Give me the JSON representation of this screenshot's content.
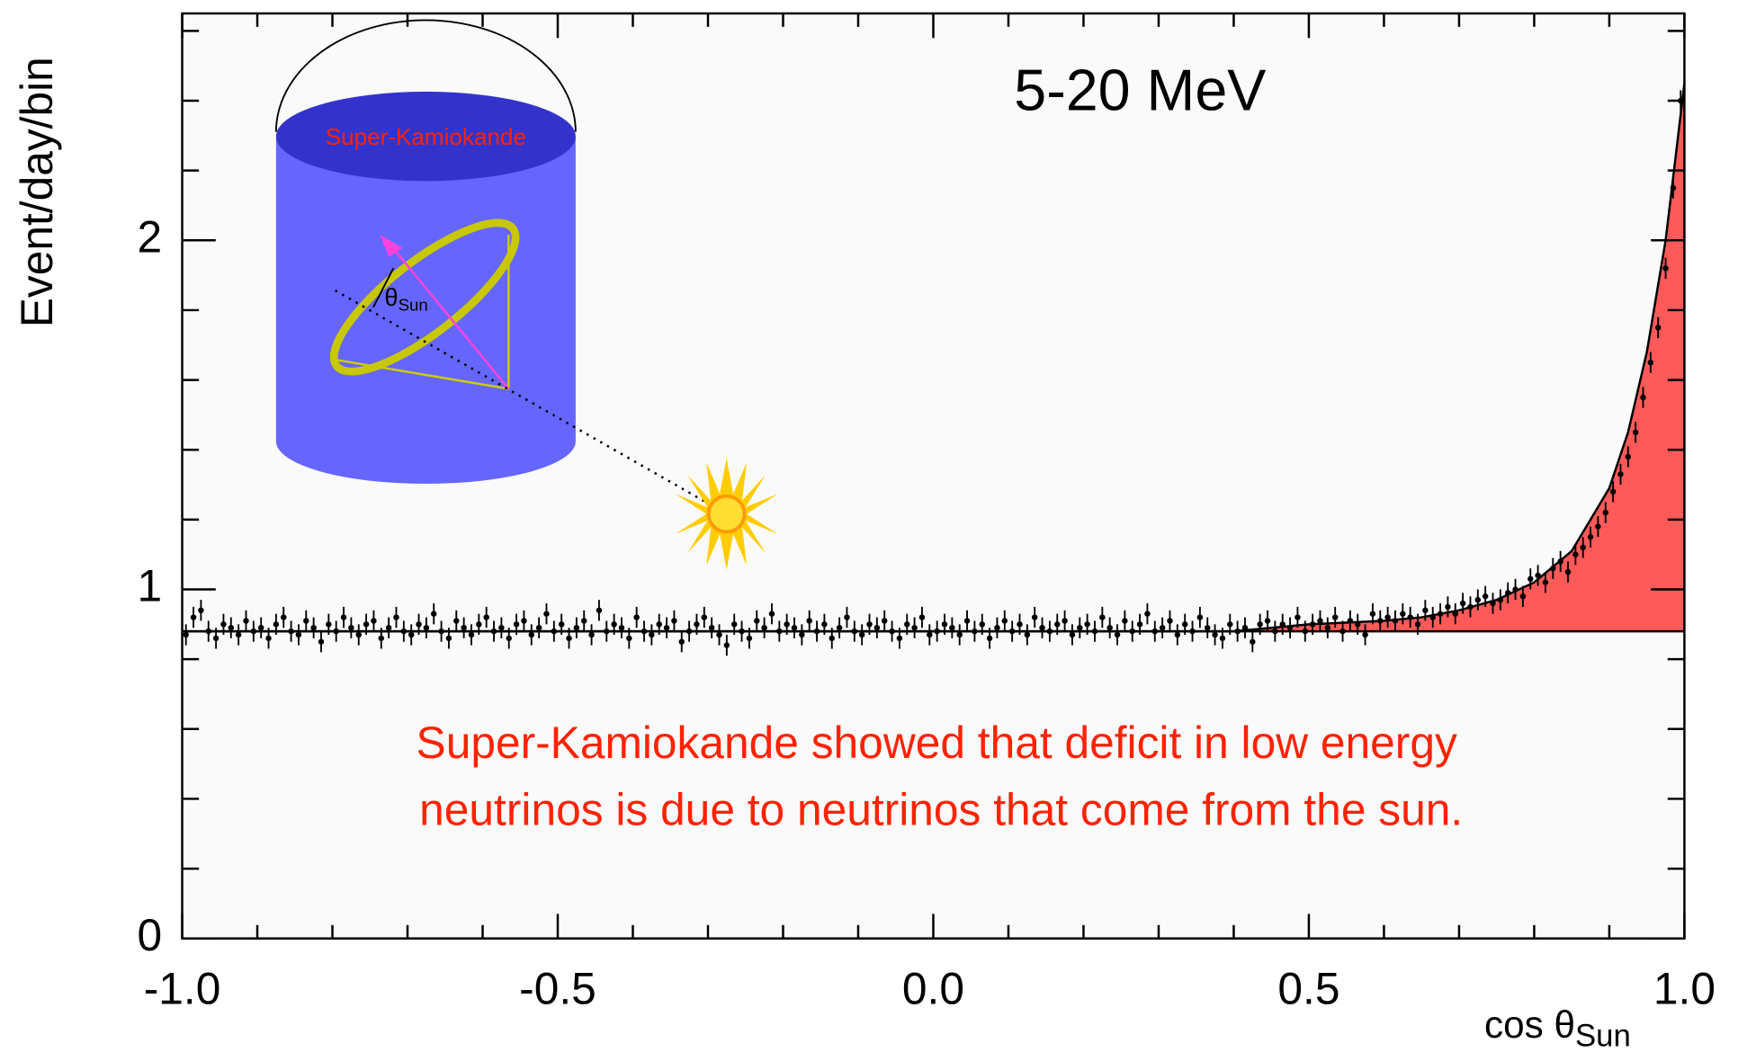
{
  "chart_data": {
    "type": "errorbar",
    "title": "5-20 MeV",
    "y_label": "Event/day/bin",
    "x_label": "cos θ",
    "x_label_sub": "Sun",
    "annotation_lines": [
      "Super-Kamiokande showed that deficit in low energy",
      "neutrinos is due to neutrinos that come from the sun."
    ],
    "inset_label": "Super-Kamiokande",
    "inset_angle": "θ",
    "inset_angle_sub": "Sun",
    "xlim": [
      -1,
      1
    ],
    "ylim": [
      0,
      2.65
    ],
    "xticks": [
      {
        "value": -1,
        "label": "-1.0"
      },
      -0.5,
      {
        "value": 0,
        "label": "0.0"
      },
      0.5,
      {
        "value": 1,
        "label": "1.0"
      }
    ],
    "xminorticks": [
      -0.9,
      -0.8,
      -0.7,
      -0.6,
      -0.4,
      -0.3,
      -0.2,
      -0.1,
      0.1,
      0.2,
      0.3,
      0.4,
      0.6,
      0.7,
      0.8,
      0.9
    ],
    "yticks": [
      0,
      1,
      2
    ],
    "yminorticks": [
      0.2,
      0.4,
      0.6,
      0.8,
      1.2,
      1.4,
      1.6,
      1.8,
      2.2,
      2.4,
      2.6
    ],
    "background": 0.88,
    "fill_color": "#ff5a5a",
    "series": [
      {
        "color": "#000000",
        "error": 0.03,
        "x": [
          -0.995,
          -0.985,
          -0.975,
          -0.965,
          -0.955,
          -0.945,
          -0.935,
          -0.925,
          -0.915,
          -0.905,
          -0.895,
          -0.885,
          -0.875,
          -0.865,
          -0.855,
          -0.845,
          -0.835,
          -0.825,
          -0.815,
          -0.805,
          -0.795,
          -0.785,
          -0.775,
          -0.765,
          -0.755,
          -0.745,
          -0.735,
          -0.725,
          -0.715,
          -0.705,
          -0.695,
          -0.685,
          -0.675,
          -0.665,
          -0.655,
          -0.645,
          -0.635,
          -0.625,
          -0.615,
          -0.605,
          -0.595,
          -0.585,
          -0.575,
          -0.565,
          -0.555,
          -0.545,
          -0.535,
          -0.525,
          -0.515,
          -0.505,
          -0.495,
          -0.485,
          -0.475,
          -0.465,
          -0.455,
          -0.445,
          -0.435,
          -0.425,
          -0.415,
          -0.405,
          -0.395,
          -0.385,
          -0.375,
          -0.365,
          -0.355,
          -0.345,
          -0.335,
          -0.325,
          -0.315,
          -0.305,
          -0.295,
          -0.285,
          -0.275,
          -0.265,
          -0.255,
          -0.245,
          -0.235,
          -0.225,
          -0.215,
          -0.205,
          -0.195,
          -0.185,
          -0.175,
          -0.165,
          -0.155,
          -0.145,
          -0.135,
          -0.125,
          -0.115,
          -0.105,
          -0.095,
          -0.085,
          -0.075,
          -0.065,
          -0.055,
          -0.045,
          -0.035,
          -0.025,
          -0.015,
          -0.005,
          0.005,
          0.015,
          0.025,
          0.035,
          0.045,
          0.055,
          0.065,
          0.075,
          0.085,
          0.095,
          0.105,
          0.115,
          0.125,
          0.135,
          0.145,
          0.155,
          0.165,
          0.175,
          0.185,
          0.195,
          0.205,
          0.215,
          0.225,
          0.235,
          0.245,
          0.255,
          0.265,
          0.275,
          0.285,
          0.295,
          0.305,
          0.315,
          0.325,
          0.335,
          0.345,
          0.355,
          0.365,
          0.375,
          0.385,
          0.395,
          0.405,
          0.415,
          0.425,
          0.435,
          0.445,
          0.455,
          0.465,
          0.475,
          0.485,
          0.495,
          0.505,
          0.515,
          0.525,
          0.535,
          0.545,
          0.555,
          0.565,
          0.575,
          0.585,
          0.595,
          0.605,
          0.615,
          0.625,
          0.635,
          0.645,
          0.655,
          0.665,
          0.675,
          0.685,
          0.695,
          0.705,
          0.715,
          0.725,
          0.735,
          0.745,
          0.755,
          0.765,
          0.775,
          0.785,
          0.795,
          0.805,
          0.815,
          0.825,
          0.835,
          0.845,
          0.855,
          0.865,
          0.875,
          0.885,
          0.895,
          0.905,
          0.915,
          0.925,
          0.935,
          0.945,
          0.955,
          0.965,
          0.975,
          0.985,
          0.995
        ],
        "values": [
          0.87,
          0.92,
          0.94,
          0.88,
          0.86,
          0.9,
          0.89,
          0.87,
          0.91,
          0.88,
          0.89,
          0.86,
          0.9,
          0.92,
          0.88,
          0.87,
          0.91,
          0.89,
          0.85,
          0.9,
          0.88,
          0.92,
          0.89,
          0.87,
          0.9,
          0.91,
          0.86,
          0.89,
          0.92,
          0.88,
          0.87,
          0.9,
          0.89,
          0.93,
          0.88,
          0.86,
          0.91,
          0.89,
          0.87,
          0.9,
          0.92,
          0.88,
          0.89,
          0.86,
          0.9,
          0.91,
          0.87,
          0.89,
          0.93,
          0.88,
          0.9,
          0.86,
          0.89,
          0.91,
          0.87,
          0.94,
          0.88,
          0.9,
          0.89,
          0.86,
          0.92,
          0.88,
          0.87,
          0.9,
          0.89,
          0.91,
          0.85,
          0.88,
          0.9,
          0.92,
          0.89,
          0.87,
          0.84,
          0.9,
          0.88,
          0.86,
          0.91,
          0.89,
          0.93,
          0.88,
          0.9,
          0.89,
          0.87,
          0.91,
          0.88,
          0.9,
          0.86,
          0.89,
          0.92,
          0.88,
          0.87,
          0.9,
          0.89,
          0.91,
          0.88,
          0.86,
          0.9,
          0.89,
          0.92,
          0.87,
          0.88,
          0.9,
          0.89,
          0.87,
          0.91,
          0.88,
          0.9,
          0.86,
          0.89,
          0.91,
          0.88,
          0.9,
          0.87,
          0.92,
          0.89,
          0.88,
          0.9,
          0.91,
          0.87,
          0.89,
          0.9,
          0.88,
          0.92,
          0.89,
          0.87,
          0.91,
          0.88,
          0.9,
          0.93,
          0.88,
          0.89,
          0.91,
          0.87,
          0.9,
          0.88,
          0.92,
          0.89,
          0.87,
          0.86,
          0.9,
          0.88,
          0.89,
          0.85,
          0.9,
          0.91,
          0.88,
          0.9,
          0.89,
          0.92,
          0.88,
          0.9,
          0.91,
          0.89,
          0.92,
          0.88,
          0.91,
          0.9,
          0.87,
          0.93,
          0.91,
          0.92,
          0.91,
          0.93,
          0.92,
          0.9,
          0.94,
          0.92,
          0.93,
          0.95,
          0.93,
          0.96,
          0.95,
          0.97,
          0.98,
          0.96,
          0.97,
          0.99,
          1.0,
          0.98,
          1.03,
          1.04,
          1.02,
          1.06,
          1.08,
          1.05,
          1.1,
          1.12,
          1.15,
          1.18,
          1.22,
          1.28,
          1.33,
          1.38,
          1.45,
          1.55,
          1.65,
          1.75,
          1.92,
          2.15,
          2.4
        ]
      }
    ],
    "fit": {
      "x": [
        0.4,
        0.5,
        0.6,
        0.65,
        0.7,
        0.75,
        0.8,
        0.85,
        0.9,
        0.925,
        0.95,
        0.975,
        1.0
      ],
      "values": [
        0.88,
        0.9,
        0.91,
        0.92,
        0.94,
        0.97,
        1.02,
        1.11,
        1.29,
        1.45,
        1.68,
        2.0,
        2.45
      ]
    }
  }
}
